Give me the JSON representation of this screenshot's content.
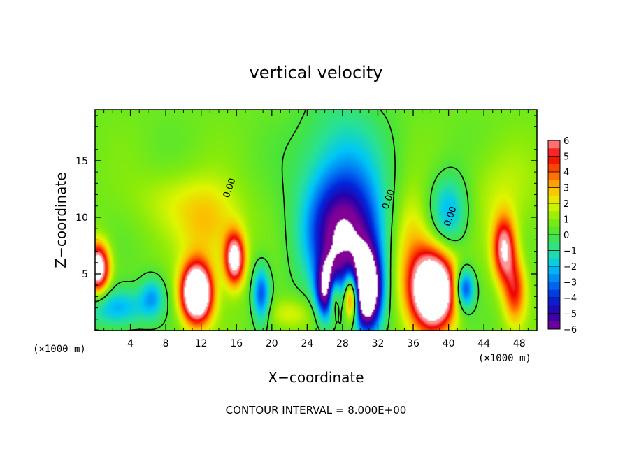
{
  "chart_data": {
    "type": "heatmap",
    "title": "vertical velocity",
    "xlabel": "X−coordinate",
    "ylabel": "Z−coordinate",
    "x_unit_left": "(×1000 m)",
    "x_unit_right": "(×1000 m)",
    "footer": "CONTOUR INTERVAL = 8.000E+00",
    "xlim": [
      0,
      50
    ],
    "ylim": [
      0,
      19.5
    ],
    "x_ticks": [
      4,
      8,
      12,
      16,
      20,
      24,
      28,
      32,
      36,
      40,
      44,
      48
    ],
    "x_tick_labels": [
      "4",
      "8",
      "12",
      "16",
      "20",
      "24",
      "28",
      "32",
      "36",
      "40",
      "44",
      "48"
    ],
    "y_ticks": [
      5,
      10,
      15
    ],
    "y_tick_labels": [
      "5",
      "10",
      "15"
    ],
    "colorbar": {
      "min": -6,
      "max": 6,
      "levels": [
        6,
        5,
        4,
        3,
        2,
        1,
        0,
        -1,
        -2,
        -3,
        -4,
        -5,
        -6
      ],
      "labels": [
        "6",
        "5",
        "4",
        "3",
        "2",
        "1",
        "0",
        "−1",
        "−2",
        "−3",
        "−4",
        "−5",
        "−6"
      ]
    },
    "contour_labels": [
      {
        "text": "0.00",
        "x": 15.5,
        "y": 12.5
      },
      {
        "text": "0.00",
        "x": 33.5,
        "y": 11.5
      },
      {
        "text": "0.00",
        "x": 40.5,
        "y": 10.0
      }
    ],
    "features": [
      {
        "x": 11.5,
        "z": 3.3,
        "amp": 11,
        "sx": 1.2,
        "sz": 1.8
      },
      {
        "x": 15.8,
        "z": 6.3,
        "amp": 7,
        "sx": 0.8,
        "sz": 1.6
      },
      {
        "x": 0.3,
        "z": 5.5,
        "amp": 8,
        "sx": 0.9,
        "sz": 1.5
      },
      {
        "x": 38.3,
        "z": 3.5,
        "amp": 11,
        "sx": 1.7,
        "sz": 2.3
      },
      {
        "x": 46.3,
        "z": 7.2,
        "amp": 6,
        "sx": 0.9,
        "sz": 2.0
      },
      {
        "x": 47.5,
        "z": 3.5,
        "amp": 4,
        "sx": 0.9,
        "sz": 2.0
      },
      {
        "x": 27.0,
        "z": 3.2,
        "amp": 8,
        "sx": 0.6,
        "sz": 1.5
      },
      {
        "x": 29.0,
        "z": 3.0,
        "amp": 7,
        "sx": 0.6,
        "sz": 1.5
      },
      {
        "x": 26.5,
        "z": 3.5,
        "amp": -9,
        "sx": 0.9,
        "sz": 1.8
      },
      {
        "x": 30.8,
        "z": 3.5,
        "amp": -10,
        "sx": 1.1,
        "sz": 2.4
      },
      {
        "x": 28.3,
        "z": 8.0,
        "amp": -6,
        "sx": 3.0,
        "sz": 3.5
      },
      {
        "x": 28.0,
        "z": 13.5,
        "amp": -2.5,
        "sx": 3.5,
        "sz": 5.0
      },
      {
        "x": 18.8,
        "z": 3.2,
        "amp": -4,
        "sx": 0.7,
        "sz": 1.8
      },
      {
        "x": 41.8,
        "z": 3.7,
        "amp": -5,
        "sx": 0.8,
        "sz": 1.3
      },
      {
        "x": 40.0,
        "z": 10.5,
        "amp": -3,
        "sx": 1.6,
        "sz": 2.3
      },
      {
        "x": 2.5,
        "z": 2.0,
        "amp": -3,
        "sx": 2.5,
        "sz": 1.3
      },
      {
        "x": 6.5,
        "z": 3.0,
        "amp": -2.5,
        "sx": 1.0,
        "sz": 1.3
      },
      {
        "x": 13.0,
        "z": 9.0,
        "amp": 2.0,
        "sx": 2.5,
        "sz": 2.5
      },
      {
        "x": 35.8,
        "z": 7.5,
        "amp": 2.5,
        "sx": 1.8,
        "sz": 3.5
      },
      {
        "x": 9.5,
        "z": 11.5,
        "amp": 1.0,
        "sx": 4.0,
        "sz": 2.0
      },
      {
        "x": 46.0,
        "z": 12.0,
        "amp": 1.0,
        "sx": 3.0,
        "sz": 3.0
      },
      {
        "x": 22.0,
        "z": 1.5,
        "amp": 1.5,
        "sx": 2.0,
        "sz": 1.0
      }
    ]
  }
}
